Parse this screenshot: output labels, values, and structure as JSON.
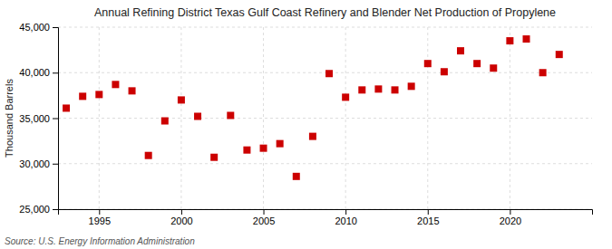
{
  "chart_data": {
    "type": "scatter",
    "title": "Annual Refining District Texas Gulf Coast Refinery and Blender Net Production of Propylene",
    "ylabel": "Thousand Barrels",
    "source": "Source: U.S. Energy Information Administration",
    "x": [
      1993,
      1994,
      1995,
      1996,
      1997,
      1998,
      1999,
      2000,
      2001,
      2002,
      2003,
      2004,
      2005,
      2006,
      2007,
      2008,
      2009,
      2010,
      2011,
      2012,
      2013,
      2014,
      2015,
      2016,
      2017,
      2018,
      2019,
      2020,
      2021,
      2022,
      2023
    ],
    "values": [
      36100,
      37400,
      37600,
      38700,
      38000,
      30900,
      34700,
      37000,
      35200,
      30700,
      35300,
      31500,
      31700,
      32200,
      28600,
      33000,
      39900,
      37300,
      38100,
      38200,
      38100,
      38500,
      41000,
      40100,
      42400,
      41000,
      40500,
      43500,
      43700,
      40000,
      42000
    ],
    "color": "#cc0000",
    "marker": "square",
    "xlim": [
      1992.5,
      2025
    ],
    "xticks": [
      1995,
      2000,
      2005,
      2010,
      2015,
      2020
    ],
    "ylim": [
      25000,
      45000
    ],
    "yticks": [
      {
        "value": 25000,
        "label": "25,000"
      },
      {
        "value": 30000,
        "label": "30,000"
      },
      {
        "value": 35000,
        "label": "35,000"
      },
      {
        "value": 40000,
        "label": "40,000"
      },
      {
        "value": 45000,
        "label": "45,000"
      }
    ],
    "grid": true
  }
}
